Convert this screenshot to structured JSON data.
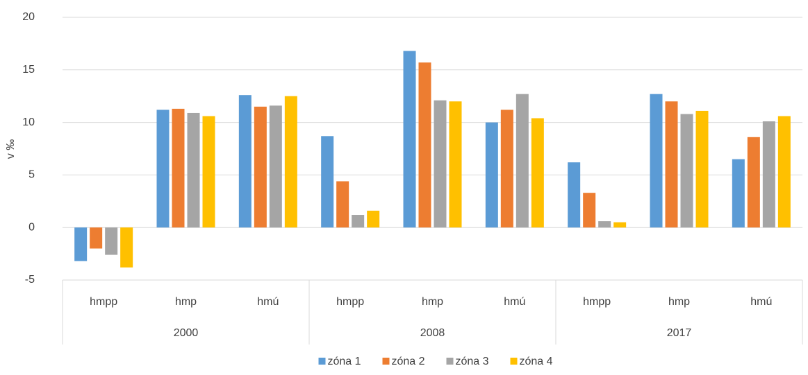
{
  "chart_data": {
    "type": "bar",
    "y_label": "v ‰",
    "categories": [
      "hmpp",
      "hmp",
      "hmú",
      "hmpp",
      "hmp",
      "hmú",
      "hmpp",
      "hmp",
      "hmú"
    ],
    "category_groups": [
      "2000",
      "2008",
      "2017"
    ],
    "series": [
      {
        "name": "zóna 1",
        "color": "#5b9bd5",
        "values": [
          -3.2,
          11.2,
          12.6,
          8.7,
          16.8,
          10.0,
          6.2,
          12.7,
          6.5
        ]
      },
      {
        "name": "zóna 2",
        "color": "#ed7d31",
        "values": [
          -2.0,
          11.3,
          11.5,
          4.4,
          15.7,
          11.2,
          3.3,
          12.0,
          8.6
        ]
      },
      {
        "name": "zóna 3",
        "color": "#a5a5a5",
        "values": [
          -2.6,
          10.9,
          11.6,
          1.2,
          12.1,
          12.7,
          0.6,
          10.8,
          10.1
        ]
      },
      {
        "name": "zóna 4",
        "color": "#ffc000",
        "values": [
          -3.8,
          10.6,
          12.5,
          1.6,
          12.0,
          10.4,
          0.5,
          11.1,
          10.6
        ]
      }
    ],
    "ylim": [
      -5,
      20
    ],
    "yticks": [
      -5,
      0,
      5,
      10,
      15,
      20
    ],
    "grid": true,
    "legend": "bottom"
  }
}
